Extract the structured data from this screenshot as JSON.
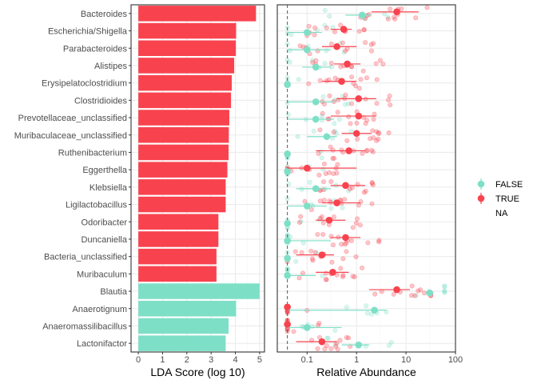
{
  "colors": {
    "true": "#F8434F",
    "false": "#7EDFC7",
    "grid_major": "#EBEBEB",
    "grid_minor": "#F5F5F5",
    "axis_text": "#4D4D4D",
    "title_text": "#000000",
    "panel_border": "#333333",
    "dashed_line": "#555555"
  },
  "chart_data": [
    {
      "type": "bar",
      "orientation": "horizontal",
      "xlabel": "LDA Score (log 10)",
      "ylabel": "",
      "xlim": [
        -0.3,
        5.2
      ],
      "xticks": [
        0,
        1,
        2,
        3,
        4,
        5
      ],
      "grid": true,
      "categories": [
        "Bacteroides",
        "Escherichia/Shigella",
        "Parabacteroides",
        "Alistipes",
        "Erysipelatoclostridium",
        "Clostridioides",
        "Prevotellaceae_unclassified",
        "Muribaculaceae_unclassified",
        "Ruthenibacterium",
        "Eggerthella",
        "Klebsiella",
        "Ligilactobacillus",
        "Odoribacter",
        "Duncaniella",
        "Bacteria_unclassified",
        "Muribaculum",
        "Blautia",
        "Anaerotignum",
        "Anaeromassilibacillus",
        "Lactonifactor"
      ],
      "values": [
        4.85,
        4.03,
        4.02,
        3.95,
        3.85,
        3.82,
        3.75,
        3.73,
        3.72,
        3.67,
        3.6,
        3.6,
        3.3,
        3.3,
        3.22,
        3.22,
        5.0,
        4.03,
        3.72,
        3.6
      ],
      "groups": [
        "TRUE",
        "TRUE",
        "TRUE",
        "TRUE",
        "TRUE",
        "TRUE",
        "TRUE",
        "TRUE",
        "TRUE",
        "TRUE",
        "TRUE",
        "TRUE",
        "TRUE",
        "TRUE",
        "TRUE",
        "TRUE",
        "FALSE",
        "FALSE",
        "FALSE",
        "FALSE"
      ]
    },
    {
      "type": "scatter",
      "xlabel": "Relative Abundance",
      "ylabel": "",
      "x_scale": "log10",
      "xlim": [
        0.025,
        100
      ],
      "xticks": [
        0.1,
        1,
        10,
        100
      ],
      "xtick_labels": [
        "0.1",
        "1",
        "10",
        "100"
      ],
      "grid": true,
      "vline": 0.04,
      "legend": {
        "placement": "right",
        "entries": [
          {
            "label": "FALSE",
            "color": "#7EDFC7"
          },
          {
            "label": "TRUE",
            "color": "#F8434F"
          },
          {
            "label": "NA",
            "color": null
          }
        ]
      },
      "categories": [
        "Bacteroides",
        "Escherichia/Shigella",
        "Parabacteroides",
        "Alistipes",
        "Erysipelatoclostridium",
        "Clostridioides",
        "Prevotellaceae_unclassified",
        "Muribaculaceae_unclassified",
        "Ruthenibacterium",
        "Eggerthella",
        "Klebsiella",
        "Ligilactobacillus",
        "Odoribacter",
        "Duncaniella",
        "Bacteria_unclassified",
        "Muribaculum",
        "Blautia",
        "Anaerotignum",
        "Anaeromassilibacillus",
        "Lactonifactor"
      ],
      "series": [
        {
          "name": "FALSE",
          "means": [
            1.3,
            0.1,
            0.1,
            0.15,
            0.04,
            0.15,
            0.15,
            0.25,
            0.04,
            0.04,
            0.15,
            0.1,
            0.04,
            0.04,
            0.04,
            0.04,
            30,
            2.3,
            0.1,
            1.1
          ],
          "ci_low": [
            0.6,
            0.04,
            0.04,
            0.08,
            0.04,
            0.04,
            0.04,
            0.1,
            0.04,
            0.04,
            0.06,
            0.04,
            0.04,
            0.04,
            0.04,
            0.04,
            25,
            0.04,
            0.04,
            0.5
          ],
          "ci_high": [
            2.0,
            0.2,
            0.3,
            0.3,
            0.04,
            0.35,
            0.35,
            0.4,
            0.04,
            0.04,
            0.3,
            0.25,
            0.04,
            0.3,
            0.04,
            0.15,
            35,
            4.0,
            0.5,
            1.8
          ]
        },
        {
          "name": "TRUE",
          "means": [
            6.5,
            0.55,
            0.4,
            0.65,
            0.5,
            1.1,
            1.1,
            1.0,
            0.7,
            0.1,
            0.6,
            0.4,
            0.28,
            0.6,
            0.2,
            0.33,
            6.5,
            0.04,
            0.04,
            0.2
          ],
          "ci_low": [
            2.0,
            0.3,
            0.2,
            0.35,
            0.2,
            0.4,
            0.3,
            0.5,
            0.15,
            0.04,
            0.3,
            0.2,
            0.15,
            0.3,
            0.06,
            0.15,
            1.8,
            0.04,
            0.04,
            0.06
          ],
          "ci_high": [
            18,
            0.8,
            1.0,
            1.2,
            1.0,
            2.5,
            2.5,
            2.0,
            1.5,
            1.0,
            1.5,
            1.2,
            0.6,
            1.2,
            0.35,
            0.7,
            12,
            0.04,
            0.04,
            0.4
          ]
        }
      ]
    }
  ]
}
